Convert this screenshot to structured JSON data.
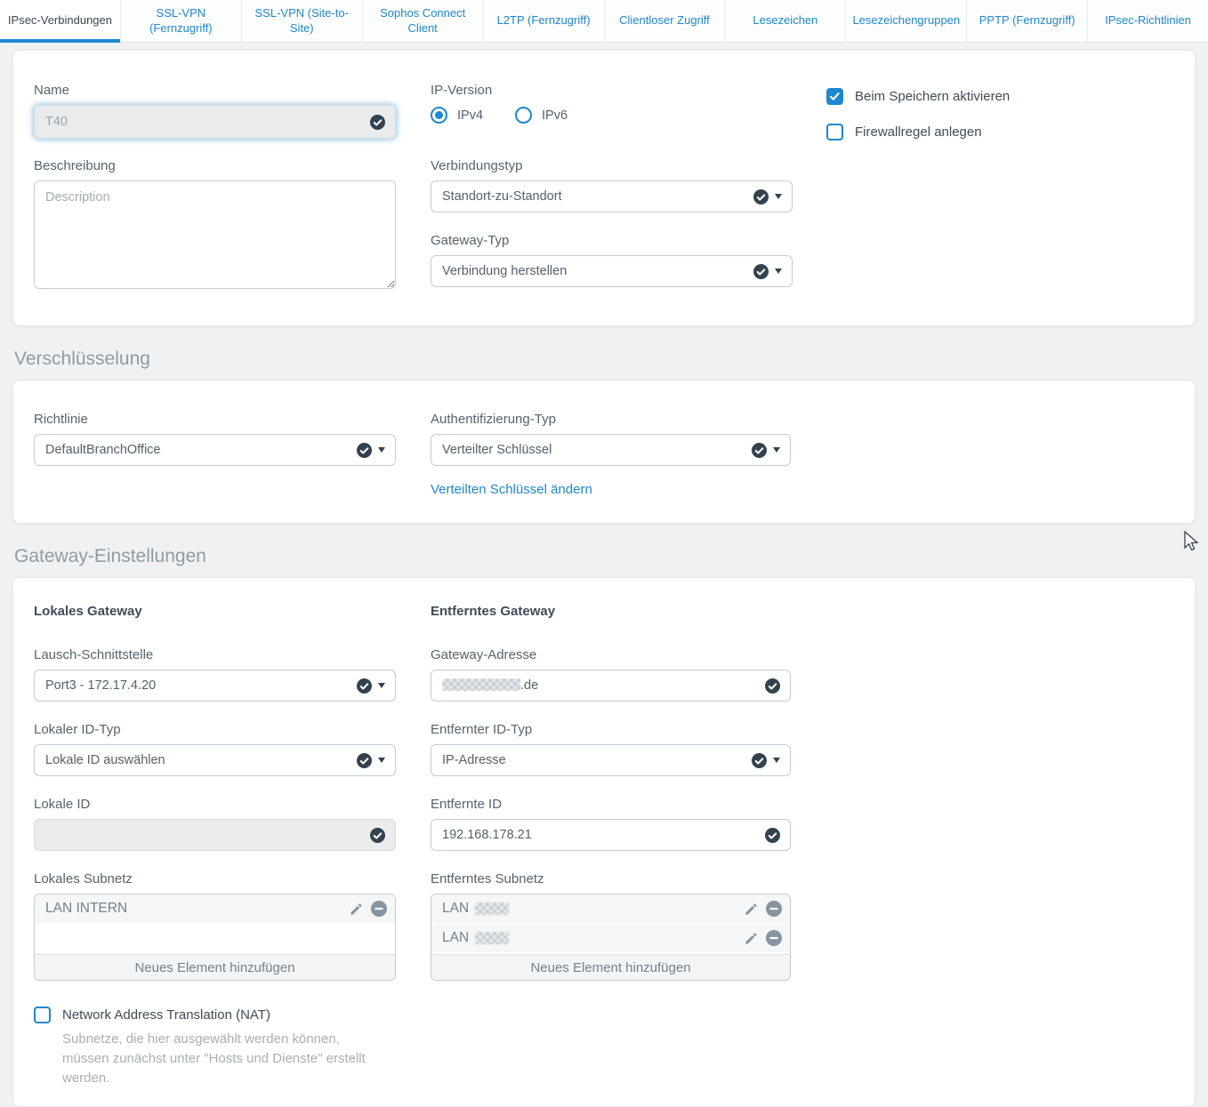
{
  "colors": {
    "accent_blue": "#1e87cf",
    "dark_icon": "#33424e",
    "section_title_gray": "#919ba4",
    "disabled_bg": "#e9ebed"
  },
  "tabs": [
    {
      "label": "IPsec-Verbindungen",
      "active": true
    },
    {
      "label": "SSL-VPN (Fernzugriff)",
      "active": false
    },
    {
      "label": "SSL-VPN (Site-to-Site)",
      "active": false
    },
    {
      "label": "Sophos Connect Client",
      "active": false
    },
    {
      "label": "L2TP (Fernzugriff)",
      "active": false
    },
    {
      "label": "Clientloser Zugriff",
      "active": false
    },
    {
      "label": "Lesezeichen",
      "active": false
    },
    {
      "label": "Lesezeichengruppen",
      "active": false
    },
    {
      "label": "PPTP (Fernzugriff)",
      "active": false
    },
    {
      "label": "IPsec-Richtlinien",
      "active": false
    }
  ],
  "general": {
    "name_label": "Name",
    "name_value": "T40",
    "description_label": "Beschreibung",
    "description_placeholder": "Description",
    "description_value": "",
    "ip_version_label": "IP-Version",
    "ip_version_options": [
      "IPv4",
      "IPv6"
    ],
    "ip_version_selected": "IPv4",
    "connection_type_label": "Verbindungstyp",
    "connection_type_value": "Standort-zu-Standort",
    "gateway_type_label": "Gateway-Typ",
    "gateway_type_value": "Verbindung herstellen",
    "activate_on_save_label": "Beim Speichern aktivieren",
    "activate_on_save_checked": true,
    "create_firewall_rule_label": "Firewallregel anlegen",
    "create_firewall_rule_checked": false
  },
  "encryption": {
    "section_title": "Verschlüsselung",
    "policy_label": "Richtlinie",
    "policy_value": "DefaultBranchOffice",
    "auth_type_label": "Authentifizierung-Typ",
    "auth_type_value": "Verteilter Schlüssel",
    "change_psk_link": "Verteilten Schlüssel ändern"
  },
  "gateway": {
    "section_title": "Gateway-Einstellungen",
    "local": {
      "title": "Lokales Gateway",
      "listening_interface_label": "Lausch-Schnittstelle",
      "listening_interface_value": "Port3 - 172.17.4.20",
      "id_type_label": "Lokaler ID-Typ",
      "id_type_value": "Lokale ID auswählen",
      "id_label": "Lokale ID",
      "id_value": "",
      "subnet": {
        "label": "Lokales Subnetz",
        "items": [
          {
            "text": "LAN INTERN",
            "redacted": false
          }
        ],
        "add_label": "Neues Element hinzufügen"
      },
      "nat_label": "Network Address Translation (NAT)",
      "nat_checked": false,
      "nat_help": "Subnetze, die hier ausgewählt werden können, müssen zunächst unter \"Hosts und Dienste\" erstellt werden."
    },
    "remote": {
      "title": "Entferntes Gateway",
      "gateway_address_label": "Gateway-Adresse",
      "gateway_address_redacted": true,
      "gateway_address_suffix": ".de",
      "id_type_label": "Entfernter ID-Typ",
      "id_type_value": "IP-Adresse",
      "id_label": "Entfernte ID",
      "id_value": "192.168.178.21",
      "subnet": {
        "label": "Entferntes Subnetz",
        "items": [
          {
            "text": "LAN",
            "redacted": true
          },
          {
            "text": "LAN",
            "redacted": true
          }
        ],
        "add_label": "Neues Element hinzufügen"
      }
    }
  }
}
